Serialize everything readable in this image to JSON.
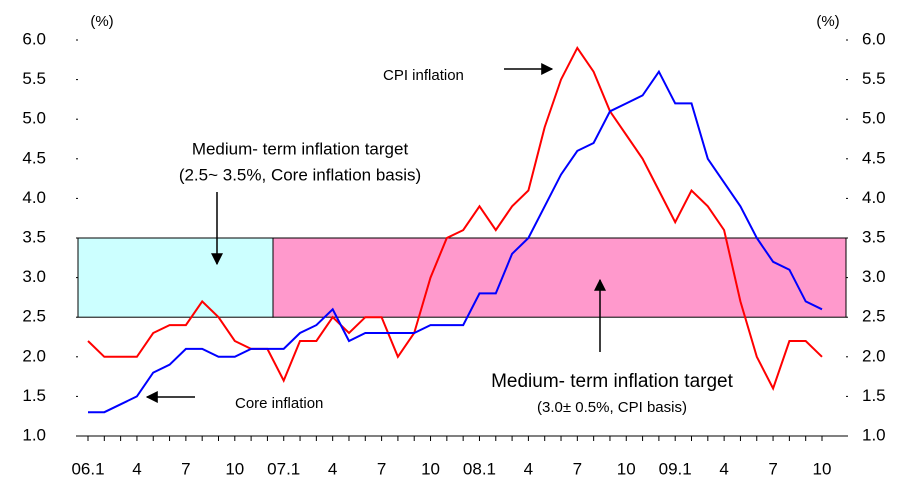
{
  "chart_data": {
    "type": "line",
    "y_unit": "(%)",
    "y2_unit": "(%)",
    "categories": [
      "06.1",
      null,
      null,
      "4",
      null,
      null,
      "7",
      null,
      null,
      "10",
      null,
      null,
      "07.1",
      null,
      null,
      "4",
      null,
      null,
      "7",
      null,
      null,
      "10",
      null,
      null,
      "08.1",
      null,
      null,
      "4",
      null,
      null,
      "7",
      null,
      null,
      "10",
      null,
      null,
      "09.1",
      null,
      null,
      "4",
      null,
      null,
      "7",
      null,
      null,
      "10"
    ],
    "series": [
      {
        "name": "CPI inflation",
        "color": "#ff0000",
        "values": [
          2.2,
          2.0,
          2.0,
          2.0,
          2.3,
          2.4,
          2.4,
          2.7,
          2.5,
          2.2,
          2.1,
          2.1,
          1.7,
          2.2,
          2.2,
          2.5,
          2.3,
          2.5,
          2.5,
          2.0,
          2.3,
          3.0,
          3.5,
          3.6,
          3.9,
          3.6,
          3.9,
          4.1,
          4.9,
          5.5,
          5.9,
          5.6,
          5.1,
          4.8,
          4.5,
          4.1,
          3.7,
          4.1,
          3.9,
          3.6,
          2.7,
          2.0,
          1.6,
          2.2,
          2.2,
          2.0
        ]
      },
      {
        "name": "Core inflation",
        "color": "#0000ff",
        "values": [
          1.3,
          1.3,
          1.4,
          1.5,
          1.8,
          1.9,
          2.1,
          2.1,
          2.0,
          2.0,
          2.1,
          2.1,
          2.1,
          2.3,
          2.4,
          2.6,
          2.2,
          2.3,
          2.3,
          2.3,
          2.3,
          2.4,
          2.4,
          2.4,
          2.8,
          2.8,
          3.3,
          3.5,
          3.9,
          4.3,
          4.6,
          4.7,
          5.1,
          5.2,
          5.3,
          5.6,
          5.2,
          5.2,
          4.5,
          4.2,
          3.9,
          3.5,
          3.2,
          3.1,
          2.7,
          2.6
        ]
      }
    ],
    "bands": [
      {
        "from": 2.5,
        "to": 3.5,
        "color": "#ccffff",
        "label": "Medium- term inflation target",
        "sublabel": "(2.5~ 3.5%, Core inflation basis)"
      },
      {
        "from": 2.5,
        "to": 3.5,
        "color": "#ff99cc",
        "label": "Medium- term inflation target",
        "sublabel": "(3.0± 0.5%, CPI basis)"
      }
    ],
    "ylim": [
      1.0,
      6.0
    ],
    "yticks": [
      {
        "value": 1.0,
        "label": "1.0"
      },
      1.5,
      {
        "value": 2.0,
        "label": "2.0"
      },
      2.5,
      {
        "value": 3.0,
        "label": "3.0"
      },
      3.5,
      {
        "value": 4.0,
        "label": "4.0"
      },
      4.5,
      {
        "value": 5.0,
        "label": "5.0"
      },
      5.5,
      {
        "value": 6.0,
        "label": "6.0"
      }
    ],
    "y2lim": [
      1.0,
      6.0
    ],
    "y2ticks": [
      {
        "value": 1.0,
        "label": "1.0"
      },
      1.5,
      {
        "value": 2.0,
        "label": "2.0"
      },
      2.5,
      {
        "value": 3.0,
        "label": "3.0"
      },
      3.5,
      {
        "value": 4.0,
        "label": "4.0"
      },
      4.5,
      {
        "value": 5.0,
        "label": "5.0"
      },
      5.5,
      {
        "value": 6.0,
        "label": "6.0"
      }
    ]
  }
}
